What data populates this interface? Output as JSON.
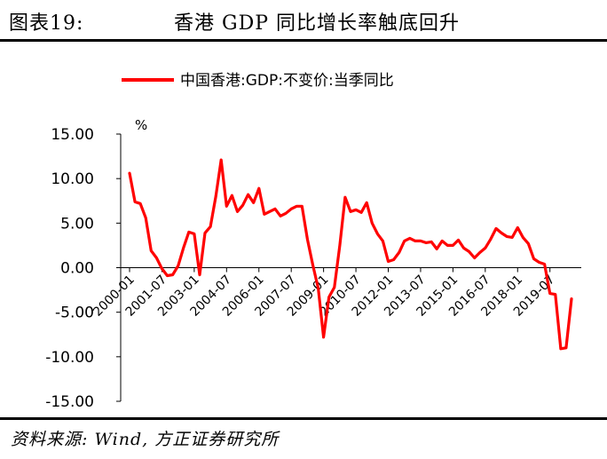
{
  "header": {
    "figure_label": "图表19:",
    "title": "香港 GDP 同比增长率触底回升"
  },
  "footer": {
    "source": "资料来源: Wind, 方正证券研究所"
  },
  "colors": {
    "series_line": "#ff0000",
    "axis": "#000000"
  },
  "chart_data": {
    "type": "line",
    "title": "",
    "xlabel": "",
    "ylabel": "%",
    "ylim": [
      -15,
      15
    ],
    "yticks": [
      15,
      10,
      5,
      0,
      -5,
      -10,
      -15
    ],
    "ytick_labels": [
      "15.00",
      "10.00",
      "5.00",
      "0.00",
      "-5.00",
      "-10.00",
      "-15.00"
    ],
    "xtick_labels": [
      "2000-01",
      "2001-07",
      "2003-01",
      "2004-07",
      "2006-01",
      "2007-07",
      "2009-01",
      "2010-07",
      "2012-01",
      "2013-07",
      "2015-01",
      "2016-07",
      "2018-01",
      "2019-07"
    ],
    "grid": false,
    "legend_position": "top-center",
    "series": [
      {
        "name": "中国香港:GDP:不变价:当季同比",
        "x": [
          "2000-Q1",
          "2000-Q2",
          "2000-Q3",
          "2000-Q4",
          "2001-Q1",
          "2001-Q2",
          "2001-Q3",
          "2001-Q4",
          "2002-Q1",
          "2002-Q2",
          "2002-Q3",
          "2002-Q4",
          "2003-Q1",
          "2003-Q2",
          "2003-Q3",
          "2003-Q4",
          "2004-Q1",
          "2004-Q2",
          "2004-Q3",
          "2004-Q4",
          "2005-Q1",
          "2005-Q2",
          "2005-Q3",
          "2005-Q4",
          "2006-Q1",
          "2006-Q2",
          "2006-Q3",
          "2006-Q4",
          "2007-Q1",
          "2007-Q2",
          "2007-Q3",
          "2007-Q4",
          "2008-Q1",
          "2008-Q2",
          "2008-Q3",
          "2008-Q4",
          "2009-Q1",
          "2009-Q2",
          "2009-Q3",
          "2009-Q4",
          "2010-Q1",
          "2010-Q2",
          "2010-Q3",
          "2010-Q4",
          "2011-Q1",
          "2011-Q2",
          "2011-Q3",
          "2011-Q4",
          "2012-Q1",
          "2012-Q2",
          "2012-Q3",
          "2012-Q4",
          "2013-Q1",
          "2013-Q2",
          "2013-Q3",
          "2013-Q4",
          "2014-Q1",
          "2014-Q2",
          "2014-Q3",
          "2014-Q4",
          "2015-Q1",
          "2015-Q2",
          "2015-Q3",
          "2015-Q4",
          "2016-Q1",
          "2016-Q2",
          "2016-Q3",
          "2016-Q4",
          "2017-Q1",
          "2017-Q2",
          "2017-Q3",
          "2017-Q4",
          "2018-Q1",
          "2018-Q2",
          "2018-Q3",
          "2018-Q4",
          "2019-Q1",
          "2019-Q2",
          "2019-Q3",
          "2019-Q4",
          "2020-Q1",
          "2020-Q2",
          "2020-Q3"
        ],
        "values": [
          10.6,
          7.4,
          7.2,
          5.6,
          1.9,
          1.1,
          -0.1,
          -0.9,
          -0.8,
          0.2,
          2.2,
          4.0,
          3.8,
          -0.8,
          3.9,
          4.6,
          8.0,
          12.1,
          6.9,
          8.1,
          6.3,
          7.0,
          8.2,
          7.3,
          8.9,
          6.0,
          6.3,
          6.6,
          5.8,
          6.1,
          6.6,
          6.9,
          6.9,
          3.2,
          0.3,
          -2.3,
          -7.8,
          -3.3,
          -2.2,
          2.5,
          7.9,
          6.3,
          6.5,
          6.2,
          7.3,
          5.0,
          3.8,
          3.0,
          0.7,
          0.9,
          1.7,
          3.0,
          3.3,
          3.0,
          3.0,
          2.8,
          2.9,
          2.1,
          3.0,
          2.5,
          2.5,
          3.1,
          2.2,
          1.8,
          1.1,
          1.7,
          2.2,
          3.2,
          4.4,
          3.9,
          3.5,
          3.4,
          4.5,
          3.4,
          2.7,
          1.0,
          0.6,
          0.4,
          -2.9,
          -3.0,
          -9.1,
          -9.0,
          -3.5
        ]
      }
    ]
  }
}
